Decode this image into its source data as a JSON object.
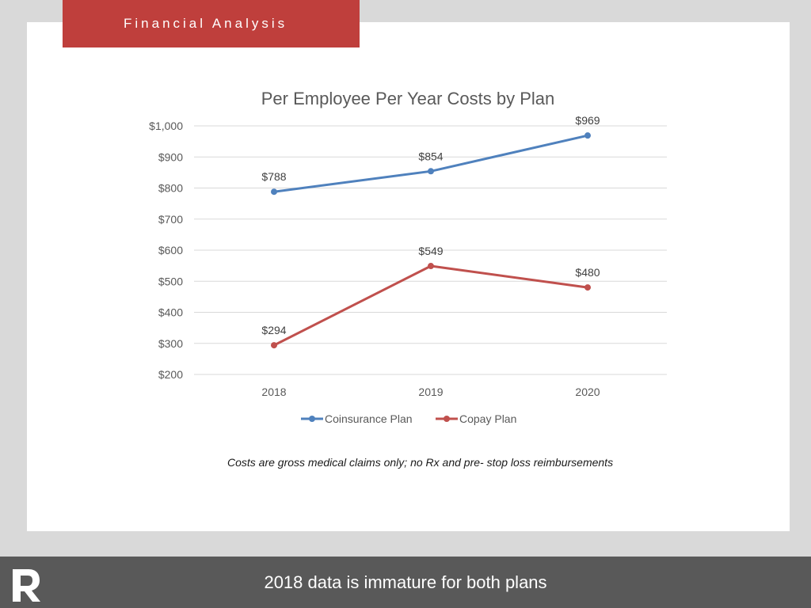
{
  "header": {
    "title": "Financial Analysis"
  },
  "chart_data": {
    "type": "line",
    "title": "Per Employee Per Year Costs by Plan",
    "xlabel": "",
    "ylabel": "",
    "categories": [
      "2018",
      "2019",
      "2020"
    ],
    "ylim": [
      200,
      1000
    ],
    "yticks": [
      "$200",
      "$300",
      "$400",
      "$500",
      "$600",
      "$700",
      "$800",
      "$900",
      "$1,000"
    ],
    "ytick_values": [
      200,
      300,
      400,
      500,
      600,
      700,
      800,
      900,
      1000
    ],
    "grid": true,
    "legend_position": "bottom",
    "series": [
      {
        "name": "Coinsurance Plan",
        "values": [
          788,
          854,
          969
        ],
        "labels": [
          "$788",
          "$854",
          "$969"
        ],
        "color": "#4f81bd"
      },
      {
        "name": "Copay Plan",
        "values": [
          294,
          549,
          480
        ],
        "labels": [
          "$294",
          "$549",
          "$480"
        ],
        "color": "#c0504d"
      }
    ]
  },
  "footnote": "Costs are gross medical claims only; no Rx and pre- stop loss reimbursements",
  "footer": {
    "message": "2018 data is immature for both plans",
    "logo_icon": "r-logo-icon"
  },
  "colors": {
    "accent": "#bf3f3c",
    "footer": "#595959",
    "gridline": "#d9d9d9"
  }
}
